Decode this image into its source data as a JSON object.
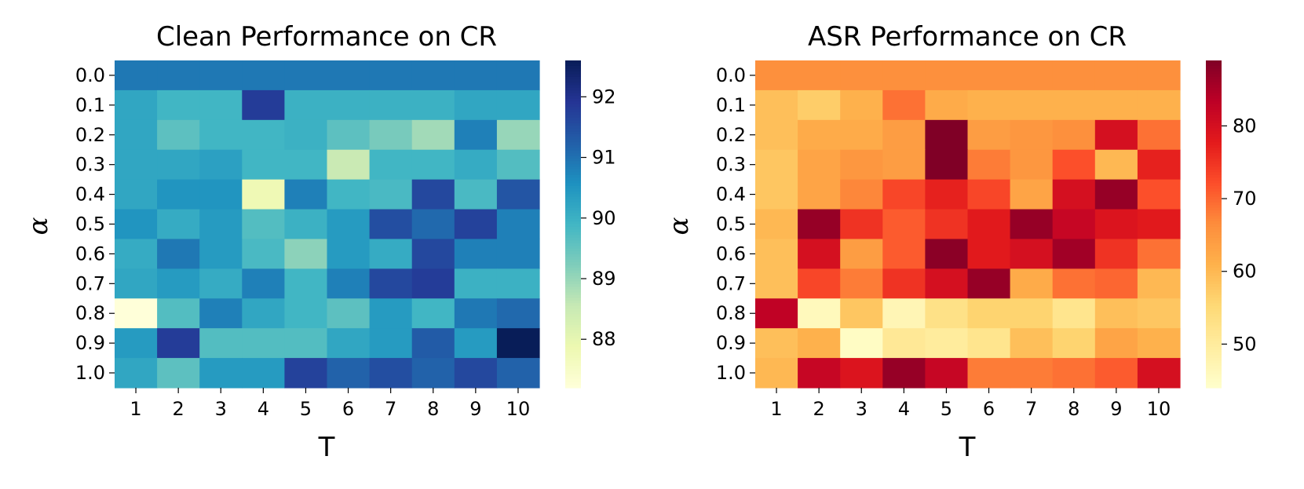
{
  "chart_data": [
    {
      "type": "heatmap",
      "title": "Clean Performance on CR",
      "xlabel": "T",
      "ylabel": "α",
      "x_categories": [
        "1",
        "2",
        "3",
        "4",
        "5",
        "6",
        "7",
        "8",
        "9",
        "10"
      ],
      "y_categories": [
        "0.0",
        "0.1",
        "0.2",
        "0.3",
        "0.4",
        "0.5",
        "0.6",
        "0.7",
        "0.8",
        "0.9",
        "1.0"
      ],
      "colormap": "YlGnBu",
      "colorbar_range": [
        87.2,
        92.6
      ],
      "colorbar_ticks": [
        88,
        89,
        90,
        91,
        92
      ],
      "values": [
        [
          90.9,
          90.9,
          90.9,
          90.9,
          90.9,
          90.9,
          90.9,
          90.9,
          90.9,
          90.9
        ],
        [
          90.2,
          89.9,
          89.9,
          91.8,
          90.0,
          90.0,
          90.0,
          90.0,
          90.2,
          90.2
        ],
        [
          90.2,
          89.6,
          89.9,
          89.9,
          90.0,
          89.6,
          89.3,
          88.9,
          90.8,
          89.0
        ],
        [
          90.2,
          90.2,
          90.3,
          89.9,
          89.9,
          88.5,
          89.9,
          89.9,
          90.1,
          89.7
        ],
        [
          90.2,
          90.5,
          90.5,
          87.8,
          90.8,
          89.9,
          89.8,
          91.6,
          89.8,
          91.4
        ],
        [
          90.5,
          90.1,
          90.4,
          89.7,
          90.0,
          90.4,
          91.5,
          91.1,
          91.7,
          90.8
        ],
        [
          90.1,
          90.9,
          90.4,
          89.8,
          89.1,
          90.4,
          90.1,
          91.6,
          90.8,
          90.8
        ],
        [
          90.2,
          90.4,
          90.1,
          90.8,
          89.9,
          90.8,
          91.6,
          91.8,
          90.0,
          90.0
        ],
        [
          87.2,
          89.7,
          90.8,
          90.2,
          89.9,
          89.6,
          90.4,
          89.9,
          90.9,
          91.1
        ],
        [
          90.4,
          91.8,
          89.7,
          89.7,
          89.7,
          90.2,
          90.4,
          91.3,
          90.4,
          92.6
        ],
        [
          90.2,
          89.6,
          90.4,
          90.4,
          91.7,
          91.2,
          91.5,
          91.2,
          91.6,
          91.2
        ]
      ]
    },
    {
      "type": "heatmap",
      "title": "ASR Performance on CR",
      "xlabel": "T",
      "ylabel": "α",
      "x_categories": [
        "1",
        "2",
        "3",
        "4",
        "5",
        "6",
        "7",
        "8",
        "9",
        "10"
      ],
      "y_categories": [
        "0.0",
        "0.1",
        "0.2",
        "0.3",
        "0.4",
        "0.5",
        "0.6",
        "0.7",
        "0.8",
        "0.9",
        "1.0"
      ],
      "colormap": "YlOrRd",
      "colorbar_range": [
        44,
        89
      ],
      "colorbar_ticks": [
        50,
        60,
        70,
        80
      ],
      "values": [
        [
          66,
          66,
          66,
          66,
          66,
          66,
          66,
          66,
          66,
          66
        ],
        [
          59,
          57,
          61,
          69,
          62,
          61,
          61,
          61,
          61,
          61
        ],
        [
          59,
          62,
          62,
          64,
          89,
          64,
          65,
          66,
          80,
          69
        ],
        [
          58,
          63,
          65,
          64,
          89,
          68,
          65,
          72,
          60,
          77
        ],
        [
          58,
          63,
          67,
          73,
          77,
          73,
          63,
          80,
          87,
          72
        ],
        [
          60,
          87,
          75,
          71,
          75,
          78,
          87,
          82,
          79,
          78
        ],
        [
          59,
          80,
          64,
          71,
          88,
          78,
          80,
          86,
          75,
          69
        ],
        [
          59,
          73,
          68,
          75,
          80,
          87,
          62,
          69,
          70,
          60
        ],
        [
          83,
          46,
          58,
          47,
          53,
          56,
          56,
          52,
          59,
          58
        ],
        [
          59,
          61,
          45,
          51,
          50,
          52,
          59,
          56,
          63,
          61
        ],
        [
          60,
          82,
          79,
          87,
          82,
          68,
          68,
          69,
          71,
          80
        ]
      ]
    }
  ]
}
